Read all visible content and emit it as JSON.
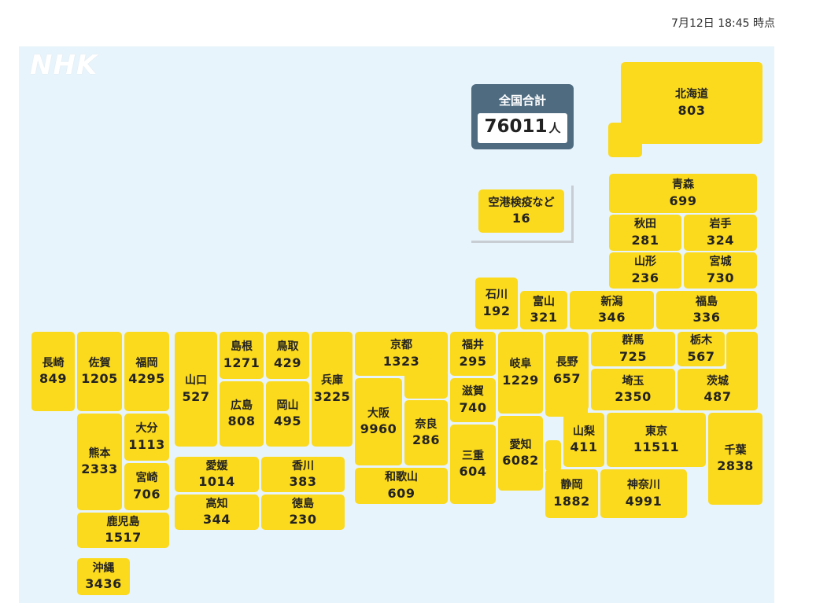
{
  "timestamp": "7月12日 18:45 時点",
  "logo": "NHK",
  "total": {
    "label": "全国合計",
    "value": "76011",
    "unit": "人"
  },
  "prefectures": [
    {
      "id": "hokkaido",
      "name": "北海道",
      "value": "803"
    },
    {
      "id": "aomori",
      "name": "青森",
      "value": "699"
    },
    {
      "id": "akita",
      "name": "秋田",
      "value": "281"
    },
    {
      "id": "iwate",
      "name": "岩手",
      "value": "324"
    },
    {
      "id": "yamagata",
      "name": "山形",
      "value": "236"
    },
    {
      "id": "miyagi",
      "name": "宮城",
      "value": "730"
    },
    {
      "id": "airport",
      "name": "空港検疫など",
      "value": "16"
    },
    {
      "id": "ishikawa",
      "name": "石川",
      "value": "192"
    },
    {
      "id": "toyama",
      "name": "富山",
      "value": "321"
    },
    {
      "id": "niigata",
      "name": "新潟",
      "value": "346"
    },
    {
      "id": "fukushima",
      "name": "福島",
      "value": "336"
    },
    {
      "id": "gunma",
      "name": "群馬",
      "value": "725"
    },
    {
      "id": "tochigi",
      "name": "栃木",
      "value": "567"
    },
    {
      "id": "saitama",
      "name": "埼玉",
      "value": "2350"
    },
    {
      "id": "ibaraki",
      "name": "茨城",
      "value": "487"
    },
    {
      "id": "nagano",
      "name": "長野",
      "value": "657"
    },
    {
      "id": "gifu",
      "name": "岐阜",
      "value": "1229"
    },
    {
      "id": "fukui",
      "name": "福井",
      "value": "295"
    },
    {
      "id": "shiga",
      "name": "滋賀",
      "value": "740"
    },
    {
      "id": "kyoto",
      "name": "京都",
      "value": "1323"
    },
    {
      "id": "osaka",
      "name": "大阪",
      "value": "9960"
    },
    {
      "id": "nara",
      "name": "奈良",
      "value": "286"
    },
    {
      "id": "mie",
      "name": "三重",
      "value": "604"
    },
    {
      "id": "aichi",
      "name": "愛知",
      "value": "6082"
    },
    {
      "id": "yamanashi",
      "name": "山梨",
      "value": "411"
    },
    {
      "id": "tokyo",
      "name": "東京",
      "value": "11511"
    },
    {
      "id": "chiba",
      "name": "千葉",
      "value": "2838"
    },
    {
      "id": "shizuoka",
      "name": "静岡",
      "value": "1882"
    },
    {
      "id": "kanagawa",
      "name": "神奈川",
      "value": "4991"
    },
    {
      "id": "wakayama",
      "name": "和歌山",
      "value": "609"
    },
    {
      "id": "hyogo",
      "name": "兵庫",
      "value": "3225"
    },
    {
      "id": "tottori",
      "name": "鳥取",
      "value": "429"
    },
    {
      "id": "shimane",
      "name": "島根",
      "value": "1271"
    },
    {
      "id": "okayama",
      "name": "岡山",
      "value": "495"
    },
    {
      "id": "hiroshima",
      "name": "広島",
      "value": "808"
    },
    {
      "id": "yamaguchi",
      "name": "山口",
      "value": "527"
    },
    {
      "id": "ehime",
      "name": "愛媛",
      "value": "1014"
    },
    {
      "id": "kagawa",
      "name": "香川",
      "value": "383"
    },
    {
      "id": "kochi",
      "name": "高知",
      "value": "344"
    },
    {
      "id": "tokushima",
      "name": "徳島",
      "value": "230"
    },
    {
      "id": "nagasaki",
      "name": "長崎",
      "value": "849"
    },
    {
      "id": "saga",
      "name": "佐賀",
      "value": "1205"
    },
    {
      "id": "fukuoka",
      "name": "福岡",
      "value": "4295"
    },
    {
      "id": "oita",
      "name": "大分",
      "value": "1113"
    },
    {
      "id": "kumamoto",
      "name": "熊本",
      "value": "2333"
    },
    {
      "id": "miyazaki",
      "name": "宮崎",
      "value": "706"
    },
    {
      "id": "kagoshima",
      "name": "鹿児島",
      "value": "1517"
    },
    {
      "id": "okinawa",
      "name": "沖縄",
      "value": "3436"
    }
  ]
}
